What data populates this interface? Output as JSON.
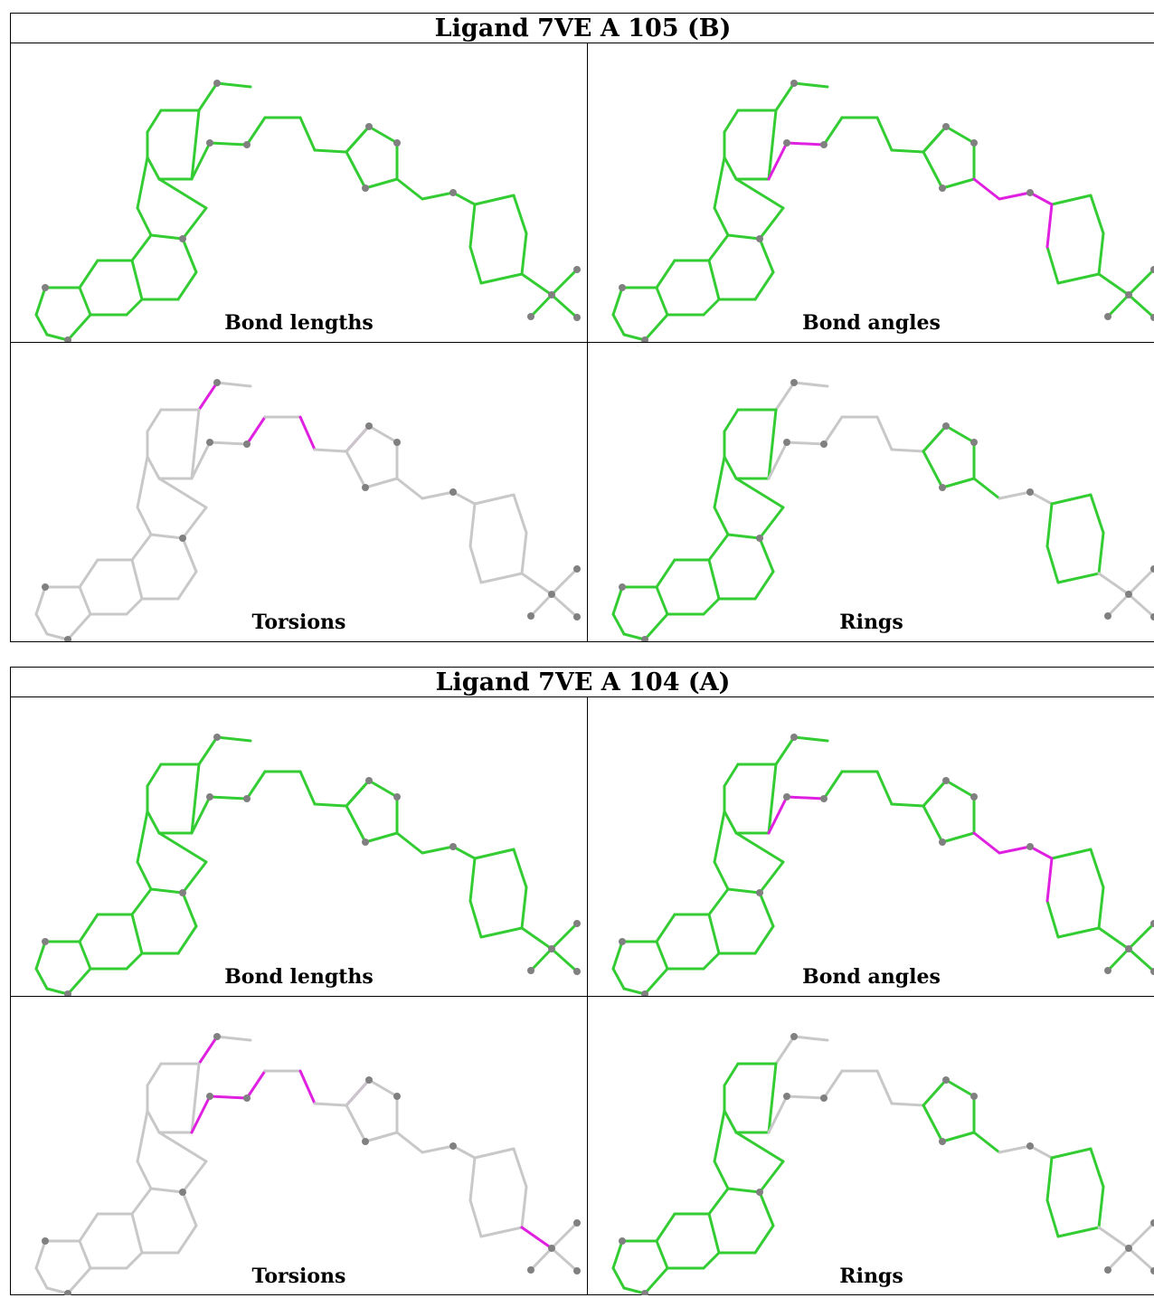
{
  "colors": {
    "outlier": "#e020e0",
    "ok": "#33cc33",
    "neutral": "#c8c8c8",
    "atom": "#808080"
  },
  "panels": [
    {
      "title": "Ligand 7VE A 105 (B)",
      "views": [
        {
          "caption": "Bond lengths",
          "mode": "all-green",
          "highlight": []
        },
        {
          "caption": "Bond angles",
          "mode": "all-green",
          "highlight": [
            "O1-C1",
            "O1-Ca",
            "ring5-link",
            "link1",
            "link2",
            "ph-link"
          ]
        },
        {
          "caption": "Torsions",
          "mode": "grey",
          "highlight": [
            "me-top",
            "chain1",
            "chain2",
            "chain3"
          ]
        },
        {
          "caption": "Rings",
          "mode": "rings",
          "highlight": []
        }
      ]
    },
    {
      "title": "Ligand 7VE A 104 (A)",
      "views": [
        {
          "caption": "Bond lengths",
          "mode": "all-green",
          "highlight": []
        },
        {
          "caption": "Bond angles",
          "mode": "all-green",
          "highlight": [
            "O1-C1",
            "O1-Ca",
            "ring5-link",
            "link1",
            "link2",
            "ph-link"
          ]
        },
        {
          "caption": "Torsions",
          "mode": "grey",
          "highlight": [
            "me-top",
            "O1-C1",
            "O1-Ca",
            "chain1",
            "chain2",
            "chain3",
            "cf3"
          ]
        },
        {
          "caption": "Rings",
          "mode": "rings",
          "highlight": []
        }
      ]
    }
  ]
}
